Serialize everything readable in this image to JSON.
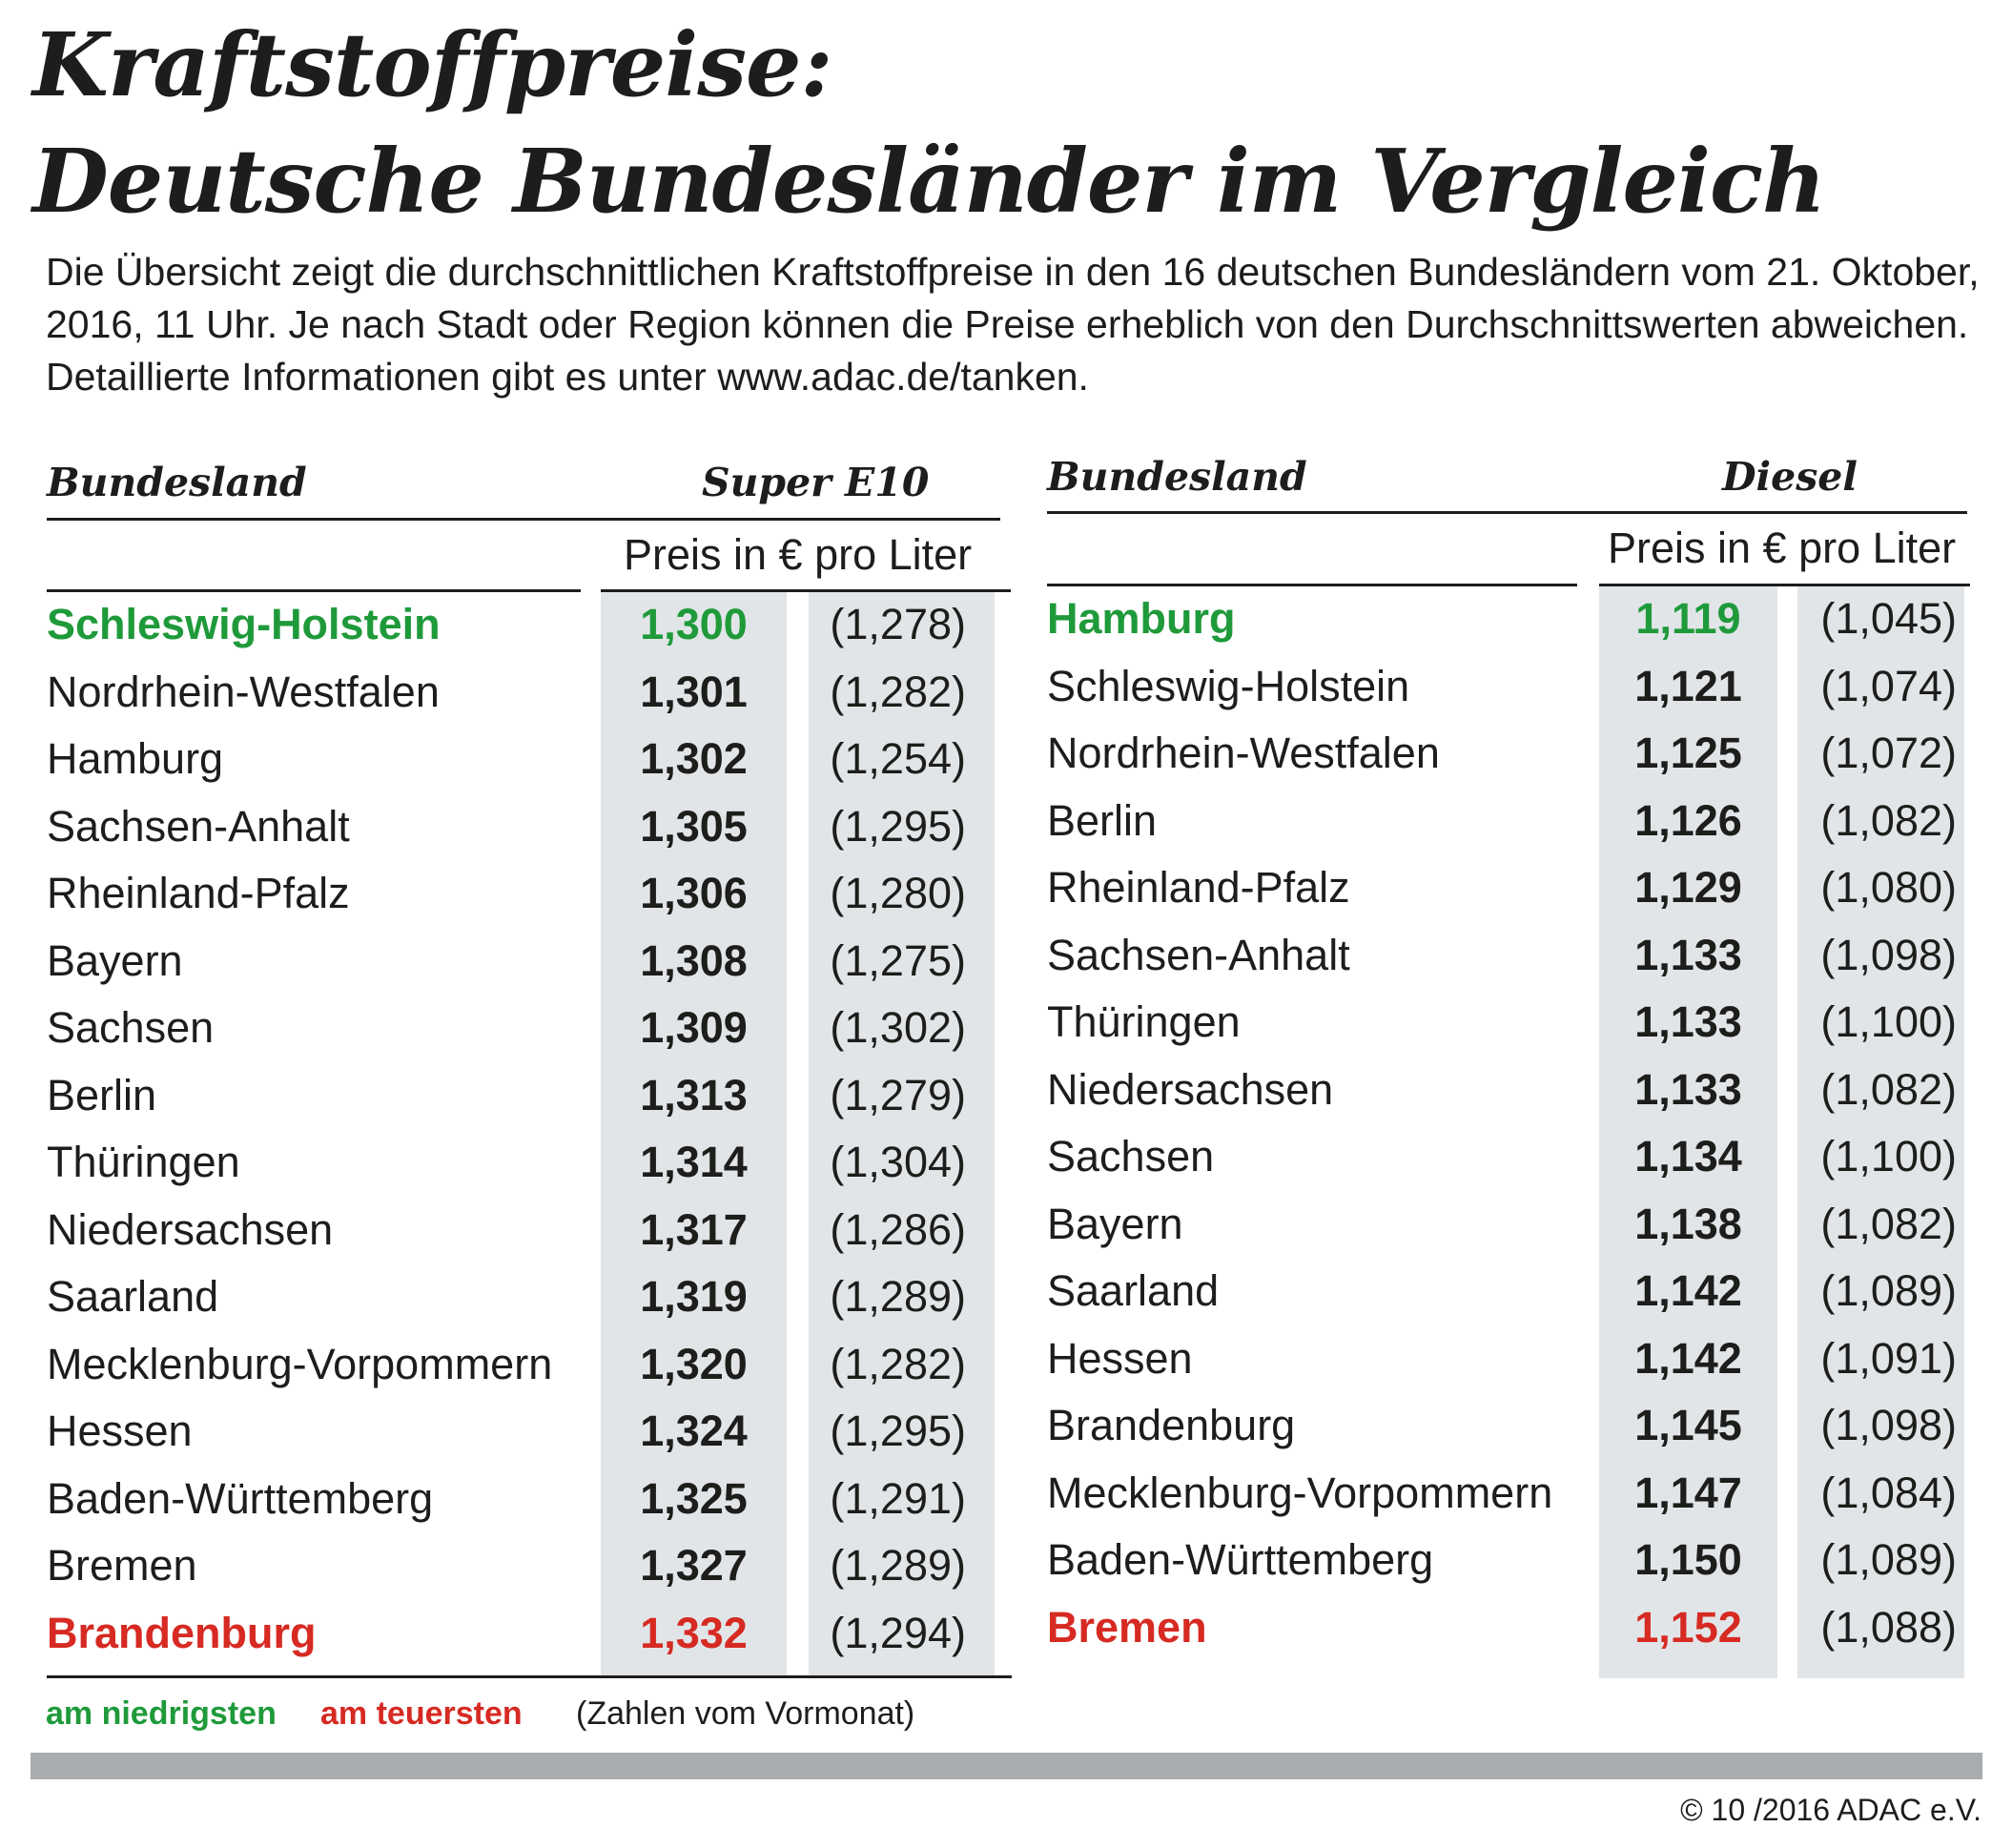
{
  "title_line1": "Kraftstoffpreise:",
  "title_line2": "Deutsche Bundesländer im Vergleich",
  "intro": "Die Übersicht zeigt die durchschnittlichen Kraftstoffpreise in den 16 deutschen Bundesländern vom 21. Oktober, 2016, 11 Uhr. Je nach Stadt oder Region können die Preise erheblich von den Durchschnittswerten abweichen. Detaillierte Informationen gibt es unter www.adac.de/tanken.",
  "colors": {
    "low": "#1f9a3a",
    "high": "#d62a22",
    "shade": "#e1e5e8",
    "text": "#1d1d1b"
  },
  "tables": [
    {
      "state_header": "Bundesland",
      "fuel_header": "Super E10",
      "unit": "Preis in € pro Liter",
      "rows": [
        {
          "state": "Schleswig-Holstein",
          "price": "1,300",
          "prev": "(1,278)",
          "status": "low"
        },
        {
          "state": "Nordrhein-Westfalen",
          "price": "1,301",
          "prev": "(1,282)",
          "status": ""
        },
        {
          "state": "Hamburg",
          "price": "1,302",
          "prev": "(1,254)",
          "status": ""
        },
        {
          "state": "Sachsen-Anhalt",
          "price": "1,305",
          "prev": "(1,295)",
          "status": ""
        },
        {
          "state": "Rheinland-Pfalz",
          "price": "1,306",
          "prev": "(1,280)",
          "status": ""
        },
        {
          "state": "Bayern",
          "price": "1,308",
          "prev": "(1,275)",
          "status": ""
        },
        {
          "state": "Sachsen",
          "price": "1,309",
          "prev": "(1,302)",
          "status": ""
        },
        {
          "state": "Berlin",
          "price": "1,313",
          "prev": "(1,279)",
          "status": ""
        },
        {
          "state": "Thüringen",
          "price": "1,314",
          "prev": "(1,304)",
          "status": ""
        },
        {
          "state": "Niedersachsen",
          "price": "1,317",
          "prev": "(1,286)",
          "status": ""
        },
        {
          "state": "Saarland",
          "price": "1,319",
          "prev": "(1,289)",
          "status": ""
        },
        {
          "state": "Mecklenburg-Vorpommern",
          "price": "1,320",
          "prev": "(1,282)",
          "status": ""
        },
        {
          "state": "Hessen",
          "price": "1,324",
          "prev": "(1,295)",
          "status": ""
        },
        {
          "state": "Baden-Württemberg",
          "price": "1,325",
          "prev": "(1,291)",
          "status": ""
        },
        {
          "state": "Bremen",
          "price": "1,327",
          "prev": "(1,289)",
          "status": ""
        },
        {
          "state": "Brandenburg",
          "price": "1,332",
          "prev": "(1,294)",
          "status": "high"
        }
      ]
    },
    {
      "state_header": "Bundesland",
      "fuel_header": "Diesel",
      "unit": "Preis in € pro Liter",
      "rows": [
        {
          "state": "Hamburg",
          "price": "1,119",
          "prev": "(1,045)",
          "status": "low"
        },
        {
          "state": "Schleswig-Holstein",
          "price": "1,121",
          "prev": "(1,074)",
          "status": ""
        },
        {
          "state": "Nordrhein-Westfalen",
          "price": "1,125",
          "prev": "(1,072)",
          "status": ""
        },
        {
          "state": "Berlin",
          "price": "1,126",
          "prev": "(1,082)",
          "status": ""
        },
        {
          "state": "Rheinland-Pfalz",
          "price": "1,129",
          "prev": "(1,080)",
          "status": ""
        },
        {
          "state": "Sachsen-Anhalt",
          "price": "1,133",
          "prev": "(1,098)",
          "status": ""
        },
        {
          "state": "Thüringen",
          "price": "1,133",
          "prev": "(1,100)",
          "status": ""
        },
        {
          "state": "Niedersachsen",
          "price": "1,133",
          "prev": "(1,082)",
          "status": ""
        },
        {
          "state": "Sachsen",
          "price": "1,134",
          "prev": "(1,100)",
          "status": ""
        },
        {
          "state": "Bayern",
          "price": "1,138",
          "prev": "(1,082)",
          "status": ""
        },
        {
          "state": "Saarland",
          "price": "1,142",
          "prev": "(1,089)",
          "status": ""
        },
        {
          "state": "Hessen",
          "price": "1,142",
          "prev": "(1,091)",
          "status": ""
        },
        {
          "state": "Brandenburg",
          "price": "1,145",
          "prev": "(1,098)",
          "status": ""
        },
        {
          "state": "Mecklenburg-Vorpommern",
          "price": "1,147",
          "prev": "(1,084)",
          "status": ""
        },
        {
          "state": "Baden-Württemberg",
          "price": "1,150",
          "prev": "(1,089)",
          "status": ""
        },
        {
          "state": "Bremen",
          "price": "1,152",
          "prev": "(1,088)",
          "status": "high"
        }
      ]
    }
  ],
  "legend": {
    "low_label": "am niedrigsten",
    "high_label": "am teuersten",
    "note": "(Zahlen vom Vormonat)"
  },
  "copyright": "© 10 /2016 ADAC e.V."
}
